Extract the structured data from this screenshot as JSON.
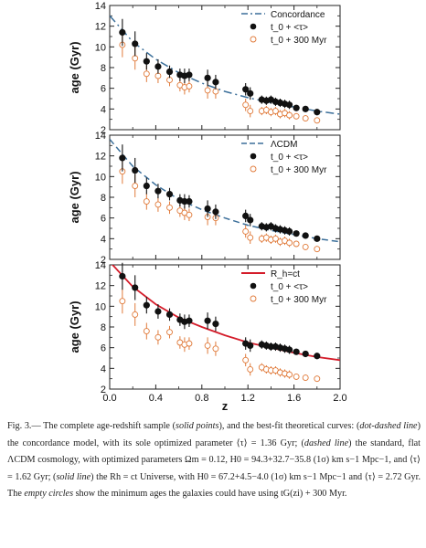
{
  "figure": {
    "x_axis": {
      "label": "z",
      "range": [
        0.0,
        2.0
      ],
      "ticks": [
        "0.0",
        "0.4",
        "0.8",
        "1.2",
        "1.6",
        "2.0"
      ]
    },
    "panels": [
      {
        "ylabel": "age (Gyr)",
        "yrange": [
          2,
          14
        ],
        "yticks": [
          "2",
          "4",
          "6",
          "8",
          "10",
          "12",
          "14"
        ],
        "legend": [
          "Concordance",
          "t_0 + <τ>",
          "t_0 + 300 Myr"
        ],
        "curve": {
          "style": "dash-dot",
          "color": "#3b6f9a"
        }
      },
      {
        "ylabel": "age (Gyr)",
        "yrange": [
          2,
          14
        ],
        "yticks": [
          "2",
          "4",
          "6",
          "8",
          "10",
          "12",
          "14"
        ],
        "legend": [
          "ΛCDM",
          "t_0 + <τ>",
          "t_0 + 300 Myr"
        ],
        "curve": {
          "style": "dashed",
          "color": "#3b6f9a"
        }
      },
      {
        "ylabel": "age (Gyr)",
        "yrange": [
          2,
          14
        ],
        "yticks": [
          "2",
          "4",
          "6",
          "8",
          "10",
          "12",
          "14"
        ],
        "legend": [
          "R_h=ct",
          "t_0 + <τ>",
          "t_0 + 300 Myr"
        ],
        "curve": {
          "style": "solid",
          "color": "#d41c2a"
        }
      }
    ]
  },
  "chart_data": [
    {
      "type": "scatter",
      "title": "",
      "xlabel": "z",
      "ylabel": "age (Gyr)",
      "xlim": [
        0.0,
        2.0
      ],
      "ylim": [
        2,
        14
      ],
      "legend_position": "top-right",
      "series": [
        {
          "name": "Concordance",
          "kind": "curve",
          "color": "#3b6f9a",
          "x": [
            0.0,
            0.2,
            0.4,
            0.6,
            0.8,
            1.0,
            1.2,
            1.4,
            1.6,
            1.8,
            2.0
          ],
          "y": [
            13.0,
            10.5,
            8.8,
            7.5,
            6.5,
            5.7,
            5.1,
            4.6,
            4.2,
            3.8,
            3.5
          ]
        },
        {
          "name": "t_0 + <τ>",
          "kind": "points",
          "color": "#111111",
          "x": [
            0.11,
            0.22,
            0.32,
            0.42,
            0.52,
            0.61,
            0.65,
            0.69,
            0.85,
            0.92,
            1.18,
            1.22,
            1.32,
            1.36,
            1.4,
            1.44,
            1.48,
            1.52,
            1.56,
            1.62,
            1.7,
            1.8
          ],
          "y": [
            11.4,
            10.3,
            8.6,
            8.1,
            7.6,
            7.3,
            7.2,
            7.3,
            7.0,
            6.6,
            5.9,
            5.5,
            4.9,
            4.8,
            4.9,
            4.7,
            4.6,
            4.5,
            4.4,
            4.1,
            4.0,
            3.7
          ],
          "err": [
            1.3,
            1.2,
            0.8,
            0.7,
            0.6,
            0.6,
            0.7,
            0.6,
            0.8,
            0.7,
            0.6,
            0.6,
            0.4,
            0.4,
            0.4,
            0.4,
            0.4,
            0.4,
            0.4,
            0.3,
            0.3,
            0.3
          ]
        },
        {
          "name": "t_0 + 300 Myr",
          "kind": "open_points",
          "color": "#e07a3a",
          "x": [
            0.11,
            0.22,
            0.32,
            0.42,
            0.52,
            0.61,
            0.65,
            0.69,
            0.85,
            0.92,
            1.18,
            1.22,
            1.32,
            1.36,
            1.4,
            1.44,
            1.48,
            1.52,
            1.56,
            1.62,
            1.7,
            1.8
          ],
          "y": [
            10.2,
            8.9,
            7.4,
            7.2,
            6.8,
            6.3,
            6.1,
            6.2,
            5.8,
            5.7,
            4.4,
            3.8,
            3.8,
            3.9,
            3.7,
            3.8,
            3.5,
            3.6,
            3.4,
            3.3,
            3.1,
            2.9
          ],
          "err": [
            1.2,
            1.1,
            0.8,
            0.7,
            0.6,
            0.6,
            0.7,
            0.6,
            0.8,
            0.7,
            0.6,
            0.6,
            0.4,
            0.4,
            0.4,
            0.4,
            0.4,
            0.4,
            0.4,
            0.3,
            0.3,
            0.3
          ]
        }
      ]
    },
    {
      "type": "scatter",
      "title": "",
      "xlabel": "z",
      "ylabel": "age (Gyr)",
      "xlim": [
        0.0,
        2.0
      ],
      "ylim": [
        2,
        14
      ],
      "legend_position": "top-right",
      "series": [
        {
          "name": "ΛCDM",
          "kind": "curve",
          "color": "#3b6f9a",
          "x": [
            0.0,
            0.2,
            0.4,
            0.6,
            0.8,
            1.0,
            1.2,
            1.4,
            1.6,
            1.8,
            2.0
          ],
          "y": [
            13.6,
            11.0,
            9.2,
            7.8,
            6.8,
            6.0,
            5.3,
            4.8,
            4.4,
            4.0,
            3.7
          ]
        },
        {
          "name": "t_0 + <τ>",
          "kind": "points",
          "color": "#111111",
          "x": [
            0.11,
            0.22,
            0.32,
            0.42,
            0.52,
            0.61,
            0.65,
            0.69,
            0.85,
            0.92,
            1.18,
            1.22,
            1.32,
            1.36,
            1.4,
            1.44,
            1.48,
            1.52,
            1.56,
            1.62,
            1.7,
            1.8
          ],
          "y": [
            11.8,
            10.6,
            9.1,
            8.6,
            8.3,
            7.7,
            7.6,
            7.6,
            6.9,
            6.6,
            6.2,
            5.8,
            5.2,
            5.1,
            5.2,
            5.0,
            4.9,
            4.8,
            4.7,
            4.5,
            4.3,
            4.0
          ],
          "err": [
            1.3,
            1.2,
            0.8,
            0.7,
            0.6,
            0.6,
            0.7,
            0.6,
            0.8,
            0.7,
            0.6,
            0.6,
            0.4,
            0.4,
            0.4,
            0.4,
            0.4,
            0.4,
            0.4,
            0.3,
            0.3,
            0.3
          ]
        },
        {
          "name": "t_0 + 300 Myr",
          "kind": "open_points",
          "color": "#e07a3a",
          "x": [
            0.11,
            0.22,
            0.32,
            0.42,
            0.52,
            0.61,
            0.65,
            0.69,
            0.85,
            0.92,
            1.18,
            1.22,
            1.32,
            1.36,
            1.4,
            1.44,
            1.48,
            1.52,
            1.56,
            1.62,
            1.7,
            1.8
          ],
          "y": [
            10.5,
            9.1,
            7.6,
            7.3,
            7.0,
            6.7,
            6.5,
            6.3,
            6.1,
            6.0,
            4.7,
            4.1,
            4.0,
            4.1,
            3.9,
            4.0,
            3.7,
            3.8,
            3.6,
            3.5,
            3.2,
            3.0
          ],
          "err": [
            1.2,
            1.1,
            0.8,
            0.7,
            0.6,
            0.6,
            0.7,
            0.6,
            0.8,
            0.7,
            0.6,
            0.6,
            0.4,
            0.4,
            0.4,
            0.4,
            0.4,
            0.4,
            0.4,
            0.3,
            0.3,
            0.3
          ]
        }
      ]
    },
    {
      "type": "scatter",
      "title": "",
      "xlabel": "z",
      "ylabel": "age (Gyr)",
      "xlim": [
        0.0,
        2.0
      ],
      "ylim": [
        2,
        14
      ],
      "legend_position": "top-right",
      "series": [
        {
          "name": "R_h=ct",
          "kind": "curve",
          "color": "#d41c2a",
          "x": [
            0.0,
            0.2,
            0.4,
            0.6,
            0.8,
            1.0,
            1.2,
            1.4,
            1.6,
            1.8,
            2.0
          ],
          "y": [
            14.3,
            11.9,
            10.2,
            8.9,
            8.0,
            7.2,
            6.5,
            6.0,
            5.5,
            5.1,
            4.8
          ]
        },
        {
          "name": "t_0 + <τ>",
          "kind": "points",
          "color": "#111111",
          "x": [
            0.11,
            0.22,
            0.32,
            0.42,
            0.52,
            0.61,
            0.65,
            0.69,
            0.85,
            0.92,
            1.18,
            1.22,
            1.32,
            1.36,
            1.4,
            1.44,
            1.48,
            1.52,
            1.56,
            1.62,
            1.7,
            1.8
          ],
          "y": [
            12.9,
            11.8,
            10.1,
            9.5,
            9.2,
            8.7,
            8.5,
            8.6,
            8.6,
            8.3,
            6.4,
            6.2,
            6.3,
            6.2,
            6.1,
            6.1,
            6.0,
            5.9,
            5.8,
            5.6,
            5.4,
            5.2
          ],
          "err": [
            1.3,
            1.2,
            0.8,
            0.7,
            0.6,
            0.6,
            0.7,
            0.6,
            0.8,
            0.7,
            0.6,
            0.6,
            0.4,
            0.4,
            0.4,
            0.4,
            0.4,
            0.4,
            0.4,
            0.3,
            0.3,
            0.3
          ]
        },
        {
          "name": "t_0 + 300 Myr",
          "kind": "open_points",
          "color": "#e07a3a",
          "x": [
            0.11,
            0.22,
            0.32,
            0.42,
            0.52,
            0.61,
            0.65,
            0.69,
            0.85,
            0.92,
            1.18,
            1.22,
            1.32,
            1.36,
            1.4,
            1.44,
            1.48,
            1.52,
            1.56,
            1.62,
            1.7,
            1.8
          ],
          "y": [
            10.5,
            9.2,
            7.6,
            7.0,
            7.5,
            6.5,
            6.3,
            6.4,
            6.2,
            5.9,
            4.8,
            3.9,
            4.1,
            3.9,
            3.8,
            3.8,
            3.6,
            3.5,
            3.4,
            3.2,
            3.1,
            3.0
          ],
          "err": [
            1.2,
            1.1,
            0.8,
            0.7,
            0.6,
            0.6,
            0.7,
            0.6,
            0.8,
            0.7,
            0.6,
            0.6,
            0.4,
            0.4,
            0.4,
            0.4,
            0.4,
            0.4,
            0.4,
            0.3,
            0.3,
            0.3
          ]
        }
      ]
    }
  ],
  "caption": {
    "fig_label": "Fig. 3.—",
    "s1": " The complete age-redshift sample (",
    "i1": "solid points",
    "s2": "), and the best-fit theoretical curves: (",
    "i2": "dot-dashed line",
    "s3": ") the concordance model, with its sole optimized parameter ⟨τ⟩ = 1.36 Gyr; (",
    "i3": "dashed line",
    "s4": ") the standard, flat ΛCDM cosmology, with optimized parameters Ωm = 0.12, H0 = 94.3+32.7−35.8 (1σ) km s−1 Mpc−1, and ⟨τ⟩ = 1.62 Gyr; (",
    "i4": "solid line",
    "s5": ") the Rh = ct Universe, with H0 = 67.2+4.5−4.0 (1σ) km s−1 Mpc−1 and ⟨τ⟩ = 2.72 Gyr. The ",
    "i5": "empty circles",
    "s6": " show the minimum ages the galaxies could have using tG(zi) + 300 Myr."
  }
}
